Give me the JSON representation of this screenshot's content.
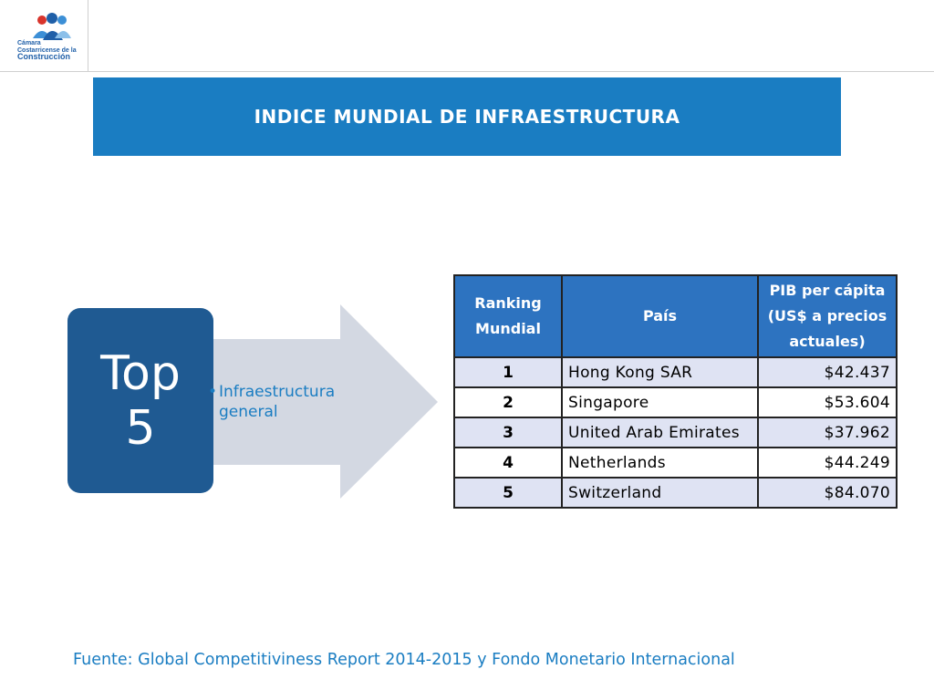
{
  "logo": {
    "lines": [
      "Cámara",
      "Costarricense de la",
      "Construcción"
    ]
  },
  "title": "INDICE MUNDIAL DE INFRAESTRUCTURA",
  "top_box": {
    "line1": "Top",
    "line2": "5"
  },
  "bullet": {
    "marker": "•",
    "text": "Infraestructura general"
  },
  "table": {
    "headers": {
      "ranking": "Ranking Mundial",
      "country": "País",
      "pib": "PIB per cápita (US$ a precios actuales)"
    },
    "rows": [
      {
        "rank": "1",
        "country": "Hong Kong SAR",
        "pib": "$42.437"
      },
      {
        "rank": "2",
        "country": "Singapore",
        "pib": "$53.604"
      },
      {
        "rank": "3",
        "country": "United Arab Emirates",
        "pib": "$37.962"
      },
      {
        "rank": "4",
        "country": "Netherlands",
        "pib": "$44.249"
      },
      {
        "rank": "5",
        "country": "Switzerland",
        "pib": "$84.070"
      }
    ]
  },
  "source": "Fuente: Global Competitiviness Report 2014-2015 y Fondo Monetario Internacional",
  "colors": {
    "title_bar": "#1a7dc2",
    "top_box": "#1f5a92",
    "table_header": "#2d73c0",
    "row_shade": "#dfe3f3",
    "arrow": "#d3d8e2"
  }
}
